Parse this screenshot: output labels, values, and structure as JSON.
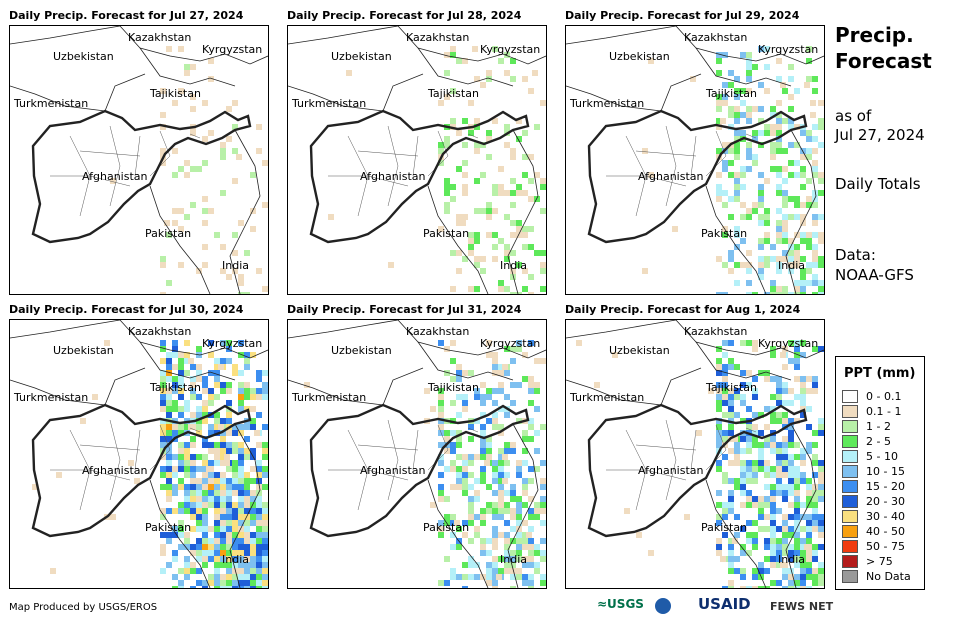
{
  "panels": [
    {
      "title": "Daily Precip. Forecast for Jul 27, 2024",
      "intensity": 0.15
    },
    {
      "title": "Daily Precip. Forecast for Jul 28, 2024",
      "intensity": 0.3
    },
    {
      "title": "Daily Precip. Forecast for Jul 29, 2024",
      "intensity": 0.55
    },
    {
      "title": "Daily Precip. Forecast for Jul 30, 2024",
      "intensity": 0.9
    },
    {
      "title": "Daily Precip. Forecast for Jul 31, 2024",
      "intensity": 0.6
    },
    {
      "title": "Daily Precip. Forecast for Aug 1, 2024",
      "intensity": 0.75
    }
  ],
  "country_labels": {
    "kazakhstan": "Kazakhstan",
    "kyrgyzstan": "Kyrgyzstan",
    "uzbekistan": "Uzbekistan",
    "tajikistan": "Tajikistan",
    "turkmenistan": "Turkmenistan",
    "afghanistan": "Afghanistan",
    "pakistan": "Pakistan",
    "india": "India"
  },
  "side": {
    "title": "Precip. Forecast",
    "as_of_label": "as of",
    "as_of_date": "Jul 27, 2024",
    "totals": "Daily Totals",
    "data_label": "Data:",
    "data_source": "NOAA-GFS"
  },
  "legend": {
    "title": "PPT (mm)",
    "items": [
      {
        "label": "0 - 0.1",
        "color": "#ffffff"
      },
      {
        "label": "0.1 - 1",
        "color": "#f0dcc0"
      },
      {
        "label": "1 - 2",
        "color": "#b8f0a8"
      },
      {
        "label": "2 - 5",
        "color": "#5ee85a"
      },
      {
        "label": "5 - 10",
        "color": "#b4f0f8"
      },
      {
        "label": "10 - 15",
        "color": "#7ec0f0"
      },
      {
        "label": "15 - 20",
        "color": "#3c8ef0"
      },
      {
        "label": "20 - 30",
        "color": "#1e5ed8"
      },
      {
        "label": "30 - 40",
        "color": "#fae080"
      },
      {
        "label": "40 - 50",
        "color": "#f8a010"
      },
      {
        "label": "50 - 75",
        "color": "#f03c10"
      },
      {
        "label": "> 75",
        "color": "#b41c1c"
      },
      {
        "label": "No Data",
        "color": "#999999"
      }
    ]
  },
  "footer": {
    "produced_by": "Map Produced by USGS/EROS",
    "logo_usgs": "≈USGS",
    "logo_usaid": "USAID",
    "logo_fews": "FEWS NET"
  }
}
